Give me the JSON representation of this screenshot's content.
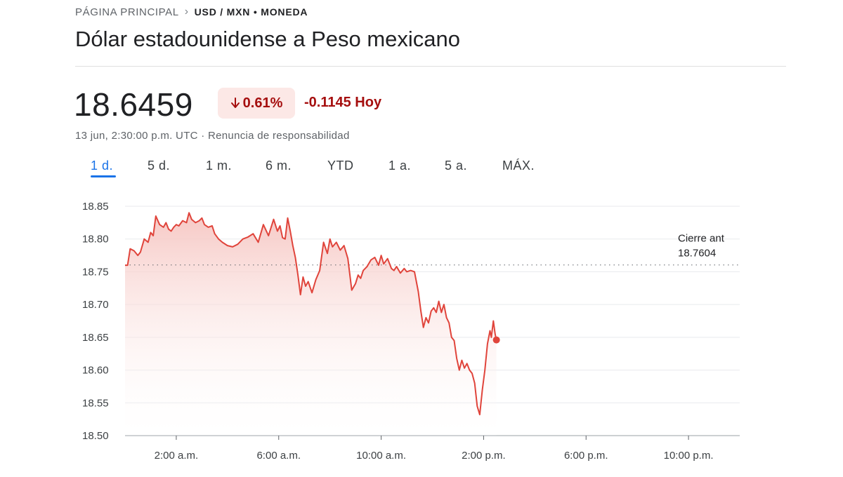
{
  "breadcrumb": {
    "home": "PÁGINA PRINCIPAL",
    "current": "USD / MXN • MONEDA"
  },
  "title": "Dólar estadounidense a Peso mexicano",
  "quote": {
    "price": "18.6459",
    "change_percent": "0.61%",
    "change_abs": "-0.1145 Hoy",
    "timestamp": "13 jun, 2:30:00 p.m. UTC · Renuncia de responsabilidad"
  },
  "tabs": [
    {
      "label": "1 d.",
      "active": true
    },
    {
      "label": "5 d.",
      "active": false
    },
    {
      "label": "1 m.",
      "active": false
    },
    {
      "label": "6 m.",
      "active": false
    },
    {
      "label": "YTD",
      "active": false
    },
    {
      "label": "1 a.",
      "active": false
    },
    {
      "label": "5 a.",
      "active": false
    },
    {
      "label": "MÁX.",
      "active": false
    }
  ],
  "colors": {
    "line": "#e0443b",
    "fill": "#f6c5c1",
    "negative": "#a50e0e",
    "badge_bg": "#fce8e6",
    "accent": "#1a73e8"
  },
  "chart_data": {
    "type": "area",
    "ylim": [
      18.5,
      18.85
    ],
    "yticks": [
      "18.85",
      "18.80",
      "18.75",
      "18.70",
      "18.65",
      "18.60",
      "18.55",
      "18.50"
    ],
    "xlim": [
      0,
      24
    ],
    "xticks": [
      {
        "hour": 2,
        "label": "2:00 a.m."
      },
      {
        "hour": 6,
        "label": "6:00 a.m."
      },
      {
        "hour": 10,
        "label": "10:00 a.m."
      },
      {
        "hour": 14,
        "label": "2:00 p.m."
      },
      {
        "hour": 18,
        "label": "6:00 p.m."
      },
      {
        "hour": 22,
        "label": "10:00 p.m."
      }
    ],
    "previous_close": {
      "label": "Cierre ant",
      "value": 18.7604,
      "value_label": "18.7604"
    },
    "grid": true,
    "series": [
      {
        "hours": [
          0,
          0.1,
          0.2,
          0.35,
          0.5,
          0.6,
          0.75,
          0.9,
          1.0,
          1.1,
          1.2,
          1.35,
          1.5,
          1.6,
          1.7,
          1.8,
          1.9,
          2.0,
          2.1,
          2.25,
          2.4,
          2.5,
          2.6,
          2.75,
          2.9,
          3.0,
          3.1,
          3.25,
          3.4,
          3.5,
          3.65,
          3.8,
          4.0,
          4.2,
          4.4,
          4.6,
          4.8,
          5.0,
          5.2,
          5.4,
          5.6,
          5.8,
          5.95,
          6.05,
          6.15,
          6.25,
          6.35,
          6.45,
          6.55,
          6.65,
          6.75,
          6.85,
          6.95,
          7.05,
          7.15,
          7.3,
          7.45,
          7.6,
          7.75,
          7.9,
          8.0,
          8.1,
          8.25,
          8.4,
          8.55,
          8.7,
          8.85,
          9.0,
          9.1,
          9.2,
          9.3,
          9.45,
          9.6,
          9.75,
          9.9,
          10.0,
          10.1,
          10.25,
          10.4,
          10.5,
          10.6,
          10.75,
          10.9,
          11.0,
          11.15,
          11.3,
          11.45,
          11.55,
          11.65,
          11.75,
          11.85,
          11.95,
          12.05,
          12.15,
          12.25,
          12.35,
          12.45,
          12.55,
          12.65,
          12.75,
          12.85,
          12.95,
          13.05,
          13.15,
          13.25,
          13.35,
          13.45,
          13.55,
          13.65,
          13.75,
          13.85,
          13.95,
          14.05,
          14.15,
          14.25,
          14.3,
          14.38,
          14.45,
          14.5
        ],
        "values": [
          18.76,
          18.76,
          18.785,
          18.782,
          18.775,
          18.78,
          18.8,
          18.795,
          18.81,
          18.805,
          18.835,
          18.822,
          18.818,
          18.825,
          18.815,
          18.812,
          18.818,
          18.822,
          18.82,
          18.828,
          18.825,
          18.84,
          18.83,
          18.825,
          18.828,
          18.832,
          18.822,
          18.818,
          18.82,
          18.808,
          18.8,
          18.795,
          18.79,
          18.788,
          18.792,
          18.8,
          18.803,
          18.808,
          18.795,
          18.822,
          18.805,
          18.83,
          18.812,
          18.82,
          18.802,
          18.8,
          18.832,
          18.812,
          18.79,
          18.772,
          18.745,
          18.715,
          18.742,
          18.728,
          18.735,
          18.718,
          18.738,
          18.752,
          18.795,
          18.778,
          18.8,
          18.788,
          18.795,
          18.783,
          18.79,
          18.77,
          18.722,
          18.732,
          18.745,
          18.74,
          18.752,
          18.758,
          18.768,
          18.772,
          18.76,
          18.775,
          18.762,
          18.77,
          18.755,
          18.752,
          18.758,
          18.748,
          18.755,
          18.75,
          18.752,
          18.75,
          18.72,
          18.69,
          18.665,
          18.68,
          18.672,
          18.69,
          18.695,
          18.688,
          18.705,
          18.688,
          18.7,
          18.68,
          18.672,
          18.65,
          18.645,
          18.618,
          18.6,
          18.615,
          18.603,
          18.61,
          18.6,
          18.595,
          18.58,
          18.545,
          18.532,
          18.57,
          18.6,
          18.64,
          18.66,
          18.65,
          18.675,
          18.655,
          18.646
        ]
      }
    ]
  }
}
